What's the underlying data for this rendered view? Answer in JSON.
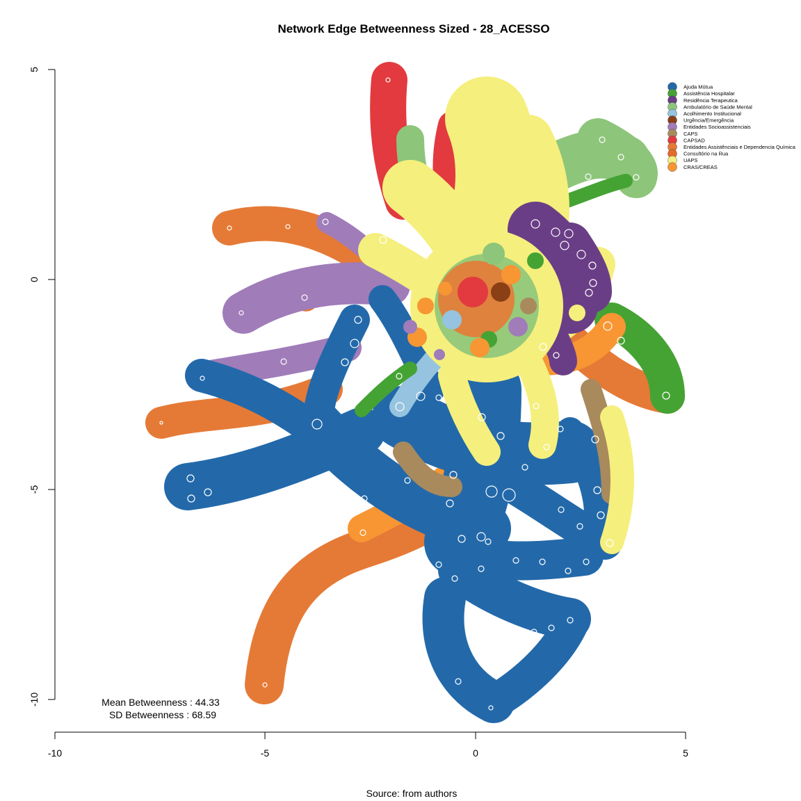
{
  "title": "Network Edge Betweenness Sized - 28_ACESSO",
  "source": "Source: from authors",
  "stats": {
    "mean": "Mean Betweenness : 44.33",
    "sd": "SD Betweenness : 68.59"
  },
  "axes": {
    "x_ticks": [
      "-10",
      "-5",
      "0",
      "5"
    ],
    "y_ticks": [
      "5",
      "0",
      "-5",
      "-10"
    ]
  },
  "legend": [
    {
      "label": "Ajuda Mútua",
      "color": "#2369aa"
    },
    {
      "label": "Assistência Hospitalar",
      "color": "#45a334"
    },
    {
      "label": "Residência Terapeutica",
      "color": "#6a3e86"
    },
    {
      "label": "Ambulatório de Saúde Mental",
      "color": "#8dc57a"
    },
    {
      "label": "Acolhimento Institucional",
      "color": "#96c3df"
    },
    {
      "label": "Urgência/Emergência",
      "color": "#8b3f15"
    },
    {
      "label": "Entidades Socioassistenciais",
      "color": "#a07cb9"
    },
    {
      "label": "CAPS",
      "color": "#a88a5d"
    },
    {
      "label": "CAPSAD",
      "color": "#e23a3f"
    },
    {
      "label": "Entidades Assistênciais e Dependencia Química",
      "color": "#e57a36"
    },
    {
      "label": "Consultório na Rua",
      "color": "#e46a2a"
    },
    {
      "label": "UAPS",
      "color": "#f5ef7d"
    },
    {
      "label": "CRAS/CREAS",
      "color": "#f79633"
    }
  ],
  "colors": {
    "blue": "#2369aa",
    "orange": "#e57a36",
    "lightorange": "#f79633",
    "purple": "#a07cb9",
    "darkpurple": "#6a3e86",
    "yellow": "#f5ef7d",
    "lightgreen": "#8dc57a",
    "green": "#45a334",
    "red": "#e23a3f",
    "tan": "#a88a5d",
    "lightblue": "#96c3df",
    "brown": "#8b3f15"
  }
}
